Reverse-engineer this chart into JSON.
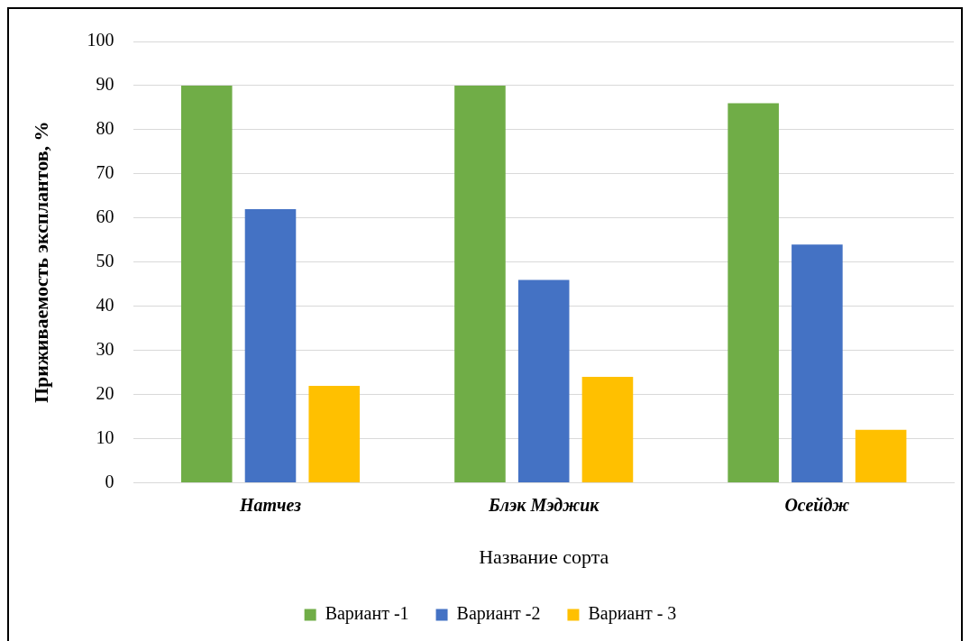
{
  "chart_data": {
    "type": "bar",
    "xlabel": "Название сорта",
    "ylabel": "Приживаемость эксплантов, %",
    "categories": [
      "Натчез",
      "Блэк Мэджик",
      "Осейдж"
    ],
    "series": [
      {
        "name": "Вариант -1",
        "color": "#70ad47",
        "values": [
          90,
          90,
          86
        ]
      },
      {
        "name": "Вариант -2",
        "color": "#4472c4",
        "values": [
          62,
          46,
          54
        ]
      },
      {
        "name": "Вариант - 3",
        "color": "#ffc000",
        "values": [
          22,
          24,
          12
        ]
      }
    ],
    "ylim": [
      0,
      100
    ],
    "yticks": [
      0,
      10,
      20,
      30,
      40,
      50,
      60,
      70,
      80,
      90,
      100
    ],
    "grid": "y",
    "legend": "bottom"
  }
}
